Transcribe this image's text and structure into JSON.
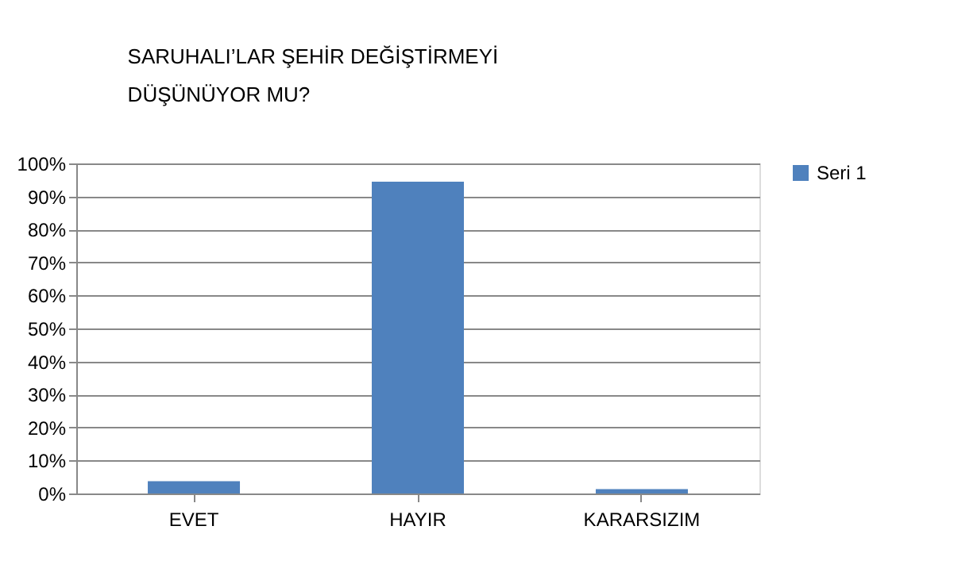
{
  "chart_data": {
    "type": "bar",
    "title": "SARUHALI’LAR ŞEHİR DEĞİŞTİRMEYİ\nDÜŞÜNÜYOR MU?",
    "categories": [
      "EVET",
      "HAYIR",
      "KARARSIZIM"
    ],
    "series": [
      {
        "name": "Seri 1",
        "color": "#4f81bd",
        "values": [
          3.7,
          94.5,
          1.3
        ]
      }
    ],
    "ylim": [
      0,
      100
    ],
    "yticks": [
      {
        "value": 0,
        "label": "0%"
      },
      {
        "value": 10,
        "label": "10%"
      },
      {
        "value": 20,
        "label": "20%"
      },
      {
        "value": 30,
        "label": "30%"
      },
      {
        "value": 40,
        "label": "40%"
      },
      {
        "value": 50,
        "label": "50%"
      },
      {
        "value": 60,
        "label": "60%"
      },
      {
        "value": 70,
        "label": "70%"
      },
      {
        "value": 80,
        "label": "80%"
      },
      {
        "value": 90,
        "label": "90%"
      },
      {
        "value": 100,
        "label": "100%"
      }
    ],
    "grid": "y",
    "legend": "right"
  }
}
